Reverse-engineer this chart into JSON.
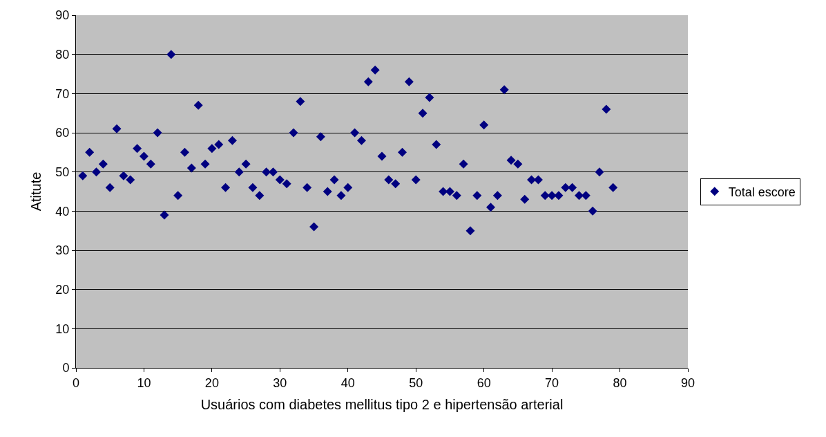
{
  "chart_data": {
    "type": "scatter",
    "xlabel": "Usuários com diabetes mellitus tipo 2 e hipertensão arterial",
    "ylabel": "Atitute",
    "x": [
      1,
      2,
      3,
      4,
      5,
      6,
      7,
      8,
      9,
      10,
      11,
      12,
      13,
      14,
      15,
      16,
      17,
      18,
      19,
      20,
      21,
      22,
      23,
      24,
      25,
      26,
      27,
      28,
      29,
      30,
      31,
      32,
      33,
      34,
      35,
      36,
      37,
      38,
      39,
      40,
      41,
      42,
      43,
      44,
      45,
      46,
      47,
      48,
      49,
      50,
      51,
      52,
      53,
      54,
      55,
      56,
      57,
      58,
      59,
      60,
      61,
      62,
      63,
      64,
      65,
      66,
      67,
      68,
      69,
      70,
      71,
      72,
      73,
      74,
      75,
      76,
      77,
      78,
      79
    ],
    "series": [
      {
        "name": "Total escore",
        "color": "#000080",
        "values": [
          49,
          55,
          50,
          52,
          46,
          61,
          49,
          48,
          56,
          54,
          52,
          60,
          39,
          80,
          44,
          55,
          51,
          67,
          52,
          56,
          57,
          46,
          58,
          50,
          52,
          46,
          44,
          50,
          50,
          48,
          47,
          60,
          68,
          46,
          36,
          59,
          45,
          48,
          44,
          46,
          60,
          58,
          73,
          76,
          54,
          48,
          47,
          55,
          73,
          48,
          65,
          69,
          57,
          45,
          45,
          44,
          52,
          35,
          44,
          62,
          41,
          44,
          71,
          53,
          52,
          43,
          48,
          48,
          44,
          44,
          44,
          46,
          46,
          44,
          44,
          40,
          50,
          66,
          46
        ]
      }
    ],
    "xlim": [
      0,
      90
    ],
    "xticks": [
      0,
      10,
      20,
      30,
      40,
      50,
      60,
      70,
      80,
      90
    ],
    "ylim": [
      0,
      90
    ],
    "yticks": [
      0,
      10,
      20,
      30,
      40,
      50,
      60,
      70,
      80,
      90
    ],
    "grid": "y",
    "legend": "right",
    "marker": "diamond"
  }
}
